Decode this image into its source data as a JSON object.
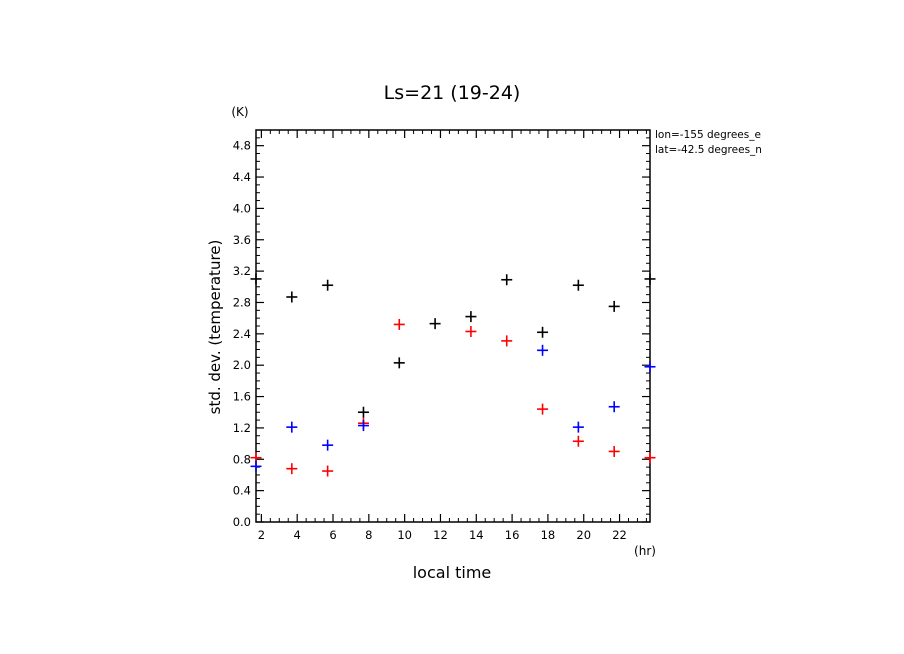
{
  "chart_data": {
    "type": "scatter",
    "title": "Ls=21 (19-24)",
    "xlabel": "local time",
    "ylabel": "std. dev. (temperature)",
    "x_unit": "(hr)",
    "y_unit": "(K)",
    "xlim": [
      1.7,
      23.7
    ],
    "ylim": [
      0.0,
      5.0
    ],
    "xticks": [
      2,
      4,
      6,
      8,
      10,
      12,
      14,
      16,
      18,
      20,
      22
    ],
    "yticks": [
      "0.0",
      "0.4",
      "0.8",
      "1.2",
      "1.6",
      "2.0",
      "2.4",
      "2.8",
      "3.2",
      "3.6",
      "4.0",
      "4.4",
      "4.8"
    ],
    "annotations": [
      "lon=-155 degrees_e",
      "lat=-42.5 degrees_n"
    ],
    "grid": false,
    "series": [
      {
        "color": "#000000",
        "points": [
          [
            1.7,
            3.1
          ],
          [
            3.7,
            2.87
          ],
          [
            5.7,
            3.02
          ],
          [
            7.7,
            1.4
          ],
          [
            9.7,
            2.03
          ],
          [
            11.7,
            2.53
          ],
          [
            13.7,
            2.62
          ],
          [
            15.7,
            3.09
          ],
          [
            17.7,
            2.42
          ],
          [
            19.7,
            3.02
          ],
          [
            21.7,
            2.75
          ],
          [
            23.7,
            3.1
          ]
        ]
      },
      {
        "color": "#ff0000",
        "points": [
          [
            1.7,
            0.82
          ],
          [
            3.7,
            0.68
          ],
          [
            5.7,
            0.65
          ],
          [
            7.7,
            1.26
          ],
          [
            9.7,
            2.52
          ],
          [
            13.7,
            2.43
          ],
          [
            15.7,
            2.31
          ],
          [
            17.7,
            1.44
          ],
          [
            19.7,
            1.03
          ],
          [
            21.7,
            0.9
          ],
          [
            23.7,
            0.82
          ]
        ]
      },
      {
        "color": "#0000ff",
        "points": [
          [
            1.7,
            0.71
          ],
          [
            3.7,
            1.21
          ],
          [
            5.7,
            0.98
          ],
          [
            7.7,
            1.23
          ],
          [
            17.7,
            2.19
          ],
          [
            19.7,
            1.21
          ],
          [
            21.7,
            1.47
          ],
          [
            23.7,
            1.98
          ]
        ]
      }
    ]
  }
}
